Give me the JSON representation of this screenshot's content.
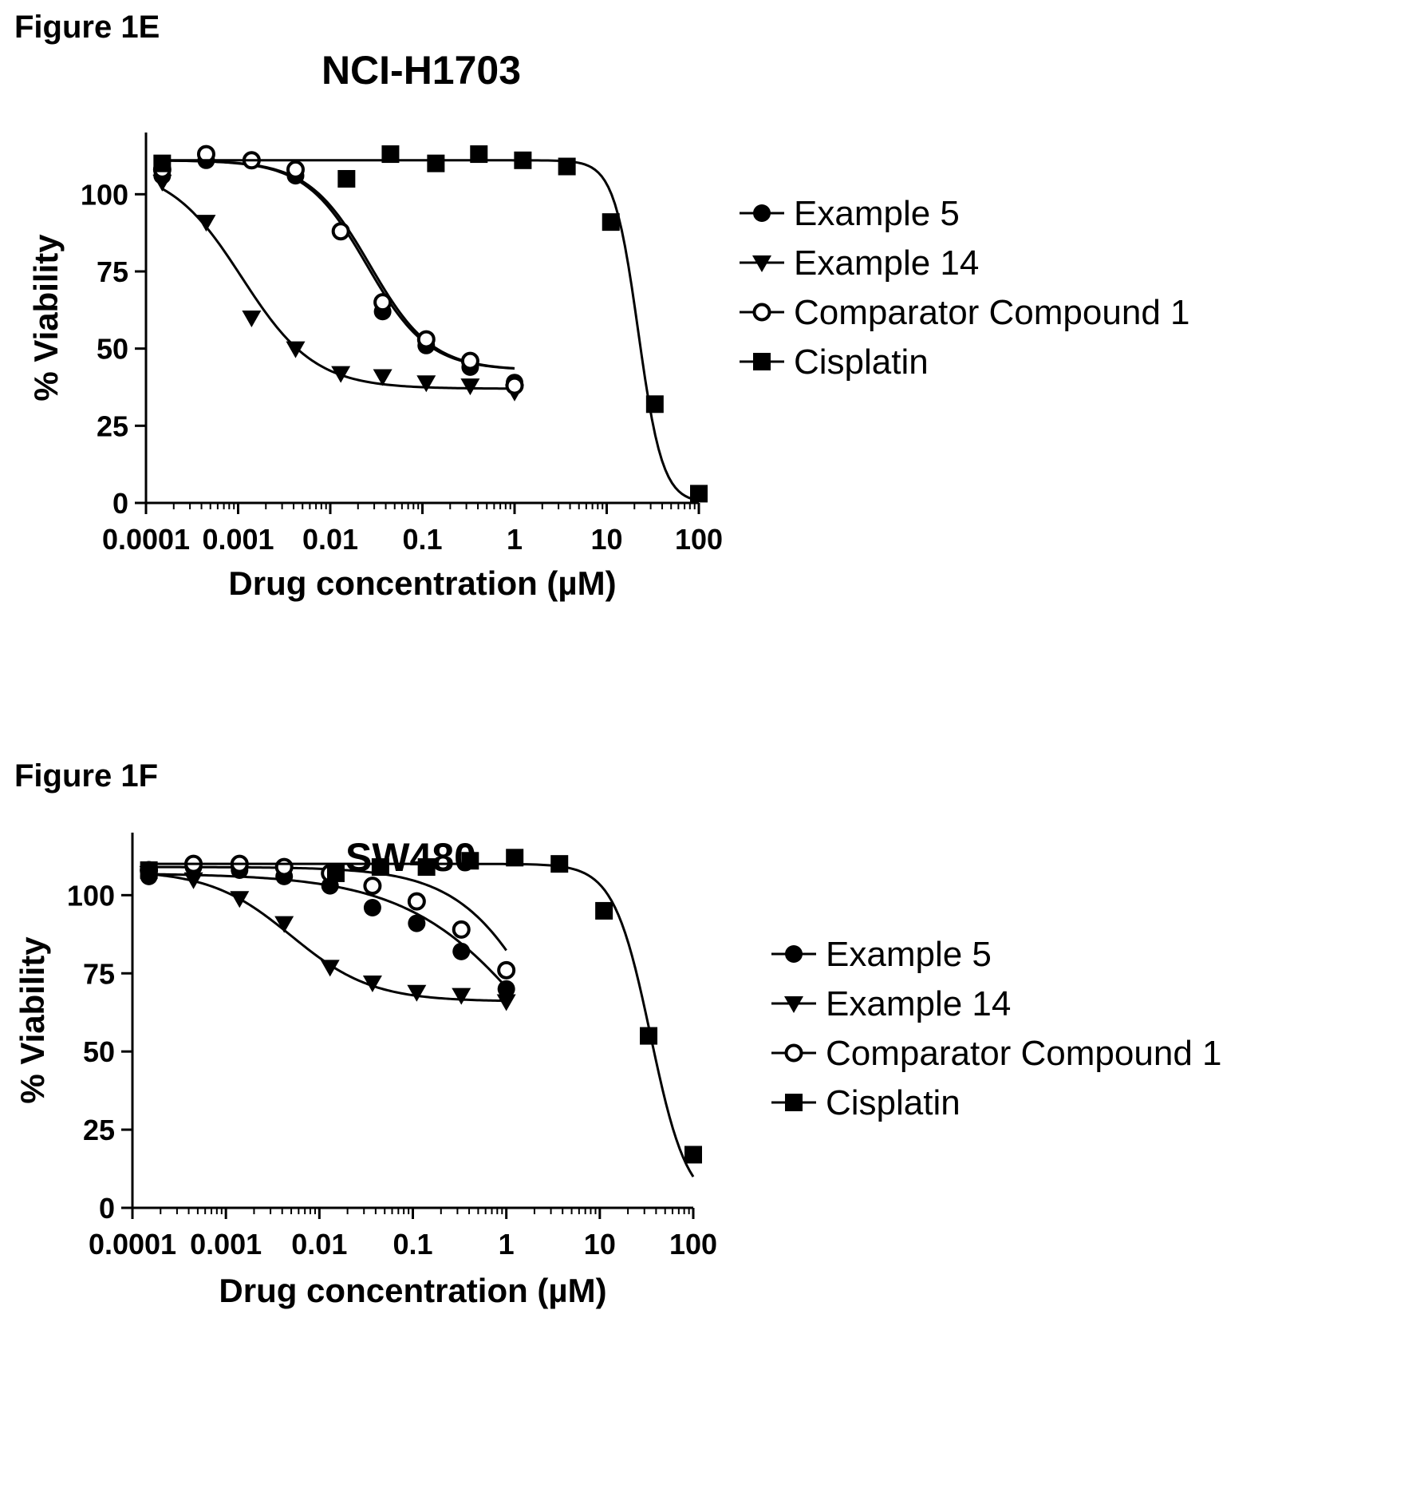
{
  "figures": [
    {
      "label": "Figure 1E"
    },
    {
      "label": "Figure 1F"
    }
  ],
  "chart_data": [
    {
      "type": "scatter",
      "title": "NCI-H1703",
      "xlabel": "Drug concentration (µM)",
      "ylabel": "% Viability",
      "xscale": "log",
      "xlim": [
        0.0001,
        100
      ],
      "ylim": [
        0,
        120
      ],
      "xticks": [
        "0.0001",
        "0.001",
        "0.01",
        "0.1",
        "1",
        "10",
        "100"
      ],
      "yticks": [
        "0",
        "25",
        "50",
        "75",
        "100"
      ],
      "grid": false,
      "legend_position": "right",
      "series": [
        {
          "name": "Example 5",
          "marker": "filled-circle",
          "x": [
            0.00015,
            0.00045,
            0.0014,
            0.0042,
            0.013,
            0.037,
            0.11,
            0.33,
            1.0
          ],
          "y": [
            106,
            111,
            111,
            106,
            88,
            62,
            51,
            44,
            39
          ],
          "fit": {
            "top": 111,
            "bottom": 43,
            "ic50": 0.025,
            "hill": 1.3
          }
        },
        {
          "name": "Example 14",
          "marker": "filled-triangle-down",
          "x": [
            0.00015,
            0.00045,
            0.0014,
            0.0042,
            0.013,
            0.037,
            0.11,
            0.33,
            1.0
          ],
          "y": [
            104,
            91,
            60,
            50,
            42,
            41,
            39,
            38,
            36
          ],
          "fit": {
            "top": 109,
            "bottom": 37,
            "ic50": 0.0011,
            "hill": 1.1
          }
        },
        {
          "name": "Comparator Compound 1",
          "marker": "open-circle",
          "x": [
            0.00015,
            0.00045,
            0.0014,
            0.0042,
            0.013,
            0.037,
            0.11,
            0.33,
            1.0
          ],
          "y": [
            108,
            113,
            111,
            108,
            88,
            65,
            53,
            46,
            38
          ],
          "fit": {
            "top": 111,
            "bottom": 43,
            "ic50": 0.027,
            "hill": 1.3
          }
        },
        {
          "name": "Cisplatin",
          "marker": "filled-square",
          "x": [
            0.00015,
            0.015,
            0.045,
            0.14,
            0.41,
            1.23,
            3.7,
            11.1,
            33.3,
            100
          ],
          "y": [
            110,
            105,
            113,
            110,
            113,
            111,
            109,
            91,
            32,
            3
          ],
          "fit": {
            "top": 111,
            "bottom": 0,
            "ic50": 22,
            "hill": 3.3
          }
        }
      ]
    },
    {
      "type": "scatter",
      "title": "SW480",
      "xlabel": "Drug concentration (µM)",
      "ylabel": "% Viability",
      "xscale": "log",
      "xlim": [
        0.0001,
        100
      ],
      "ylim": [
        0,
        120
      ],
      "xticks": [
        "0.0001",
        "0.001",
        "0.01",
        "0.1",
        "1",
        "10",
        "100"
      ],
      "yticks": [
        "0",
        "25",
        "50",
        "75",
        "100"
      ],
      "grid": false,
      "legend_position": "right",
      "series": [
        {
          "name": "Example 5",
          "marker": "filled-circle",
          "x": [
            0.00015,
            0.00045,
            0.0014,
            0.0042,
            0.013,
            0.037,
            0.11,
            0.33,
            1.0
          ],
          "y": [
            106,
            109,
            108,
            106,
            103,
            96,
            91,
            82,
            70
          ],
          "fit": {
            "top": 107,
            "bottom": 0,
            "ic50": 3.0,
            "hill": 0.6
          }
        },
        {
          "name": "Example 14",
          "marker": "filled-triangle-down",
          "x": [
            0.00015,
            0.00045,
            0.0014,
            0.0042,
            0.013,
            0.037,
            0.11,
            0.33,
            1.0
          ],
          "y": [
            107,
            105,
            99,
            91,
            77,
            72,
            69,
            68,
            66
          ],
          "fit": {
            "top": 108,
            "bottom": 66,
            "ic50": 0.005,
            "hill": 1.0
          }
        },
        {
          "name": "Comparator Compound 1",
          "marker": "open-circle",
          "x": [
            0.00015,
            0.00045,
            0.0014,
            0.0042,
            0.013,
            0.037,
            0.11,
            0.33,
            1.0
          ],
          "y": [
            108,
            110,
            110,
            109,
            107,
            103,
            98,
            89,
            76
          ],
          "fit": {
            "top": 109,
            "bottom": 0,
            "ic50": 3.5,
            "hill": 0.9
          }
        },
        {
          "name": "Cisplatin",
          "marker": "filled-square",
          "x": [
            0.00015,
            0.015,
            0.045,
            0.14,
            0.41,
            1.23,
            3.7,
            11.1,
            33.3,
            100
          ],
          "y": [
            108,
            107,
            109,
            109,
            111,
            112,
            110,
            95,
            55,
            17
          ],
          "fit": {
            "top": 110,
            "bottom": 0,
            "ic50": 35,
            "hill": 2.2
          }
        }
      ]
    }
  ]
}
